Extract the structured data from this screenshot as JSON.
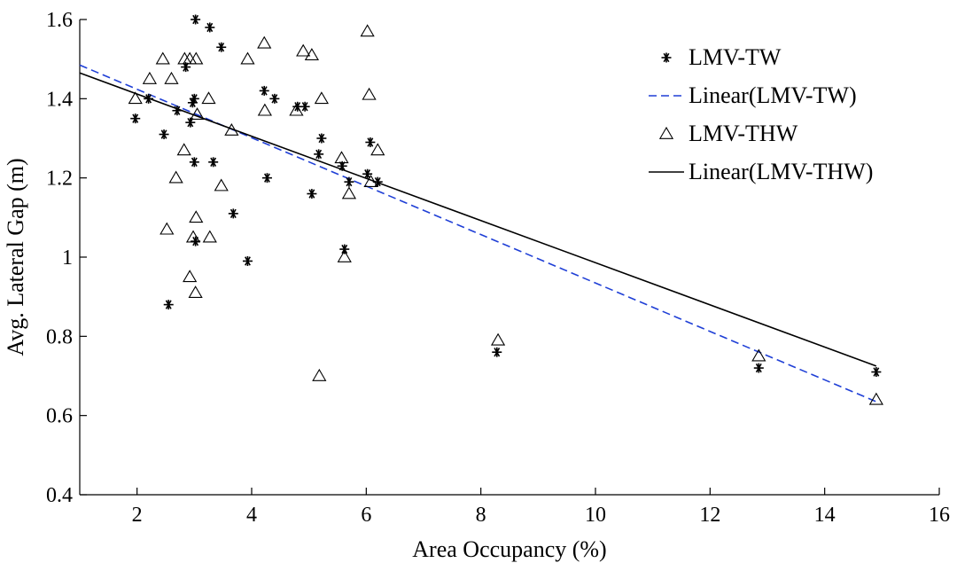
{
  "chart_data": {
    "type": "scatter",
    "title": "",
    "xlabel": "Area Occupancy (%)",
    "ylabel": "Avg. Lateral Gap (m)",
    "xlim": [
      1,
      16
    ],
    "ylim": [
      0.4,
      1.6
    ],
    "xticks": [
      2,
      4,
      6,
      8,
      10,
      12,
      14,
      16
    ],
    "yticks": [
      0.4,
      0.6,
      0.8,
      1.0,
      1.2,
      1.4,
      1.6
    ],
    "xtick_labels": [
      "2",
      "4",
      "6",
      "8",
      "10",
      "12",
      "14",
      "16"
    ],
    "ytick_labels": [
      "0.4",
      "0.6",
      "0.8",
      "1",
      "1.2",
      "1.4",
      "1.6"
    ],
    "grid": false,
    "legend_position": "top-right",
    "series": [
      {
        "name": "LMV-TW",
        "marker": "asterisk",
        "color": "#000000",
        "points": [
          [
            1.97,
            1.35
          ],
          [
            2.2,
            1.4
          ],
          [
            2.47,
            1.31
          ],
          [
            2.55,
            0.88
          ],
          [
            2.7,
            1.37
          ],
          [
            2.85,
            1.48
          ],
          [
            2.93,
            1.34
          ],
          [
            2.97,
            1.39
          ],
          [
            3.0,
            1.4
          ],
          [
            3.0,
            1.24
          ],
          [
            3.02,
            1.04
          ],
          [
            3.02,
            1.6
          ],
          [
            3.27,
            1.58
          ],
          [
            3.33,
            1.24
          ],
          [
            3.47,
            1.53
          ],
          [
            3.68,
            1.11
          ],
          [
            3.93,
            0.99
          ],
          [
            4.22,
            1.42
          ],
          [
            4.27,
            1.2
          ],
          [
            4.4,
            1.4
          ],
          [
            4.8,
            1.38
          ],
          [
            4.93,
            1.38
          ],
          [
            5.05,
            1.16
          ],
          [
            5.17,
            1.26
          ],
          [
            5.22,
            1.3
          ],
          [
            5.58,
            1.23
          ],
          [
            5.62,
            1.02
          ],
          [
            5.7,
            1.19
          ],
          [
            6.02,
            1.21
          ],
          [
            6.07,
            1.29
          ],
          [
            6.2,
            1.19
          ],
          [
            8.28,
            0.76
          ],
          [
            12.85,
            0.72
          ],
          [
            14.9,
            0.71
          ]
        ]
      },
      {
        "name": "Linear(LMV-TW)",
        "type": "line",
        "color": "#1f3fd6",
        "dash": true,
        "line": [
          [
            1.0,
            1.485
          ],
          [
            14.9,
            0.635
          ]
        ]
      },
      {
        "name": "LMV-THW",
        "marker": "triangle",
        "color": "#000000",
        "points": [
          [
            1.97,
            1.4
          ],
          [
            2.22,
            1.45
          ],
          [
            2.45,
            1.5
          ],
          [
            2.52,
            1.07
          ],
          [
            2.6,
            1.45
          ],
          [
            2.68,
            1.2
          ],
          [
            2.82,
            1.27
          ],
          [
            2.83,
            1.5
          ],
          [
            2.92,
            1.5
          ],
          [
            2.92,
            0.95
          ],
          [
            2.98,
            1.05
          ],
          [
            3.02,
            0.91
          ],
          [
            3.03,
            1.1
          ],
          [
            3.03,
            1.5
          ],
          [
            3.05,
            1.36
          ],
          [
            3.25,
            1.4
          ],
          [
            3.27,
            1.05
          ],
          [
            3.47,
            1.18
          ],
          [
            3.65,
            1.32
          ],
          [
            3.93,
            1.5
          ],
          [
            4.22,
            1.54
          ],
          [
            4.23,
            1.37
          ],
          [
            4.78,
            1.37
          ],
          [
            4.9,
            1.52
          ],
          [
            5.05,
            1.51
          ],
          [
            5.18,
            0.7
          ],
          [
            5.22,
            1.4
          ],
          [
            5.57,
            1.25
          ],
          [
            5.62,
            1.0
          ],
          [
            5.7,
            1.16
          ],
          [
            6.02,
            1.57
          ],
          [
            6.05,
            1.41
          ],
          [
            6.08,
            1.19
          ],
          [
            6.2,
            1.27
          ],
          [
            8.3,
            0.79
          ],
          [
            12.85,
            0.75
          ],
          [
            14.9,
            0.64
          ]
        ]
      },
      {
        "name": "Linear(LMV-THW)",
        "type": "line",
        "color": "#000000",
        "dash": false,
        "line": [
          [
            1.0,
            1.465
          ],
          [
            14.9,
            0.725
          ]
        ]
      }
    ]
  }
}
